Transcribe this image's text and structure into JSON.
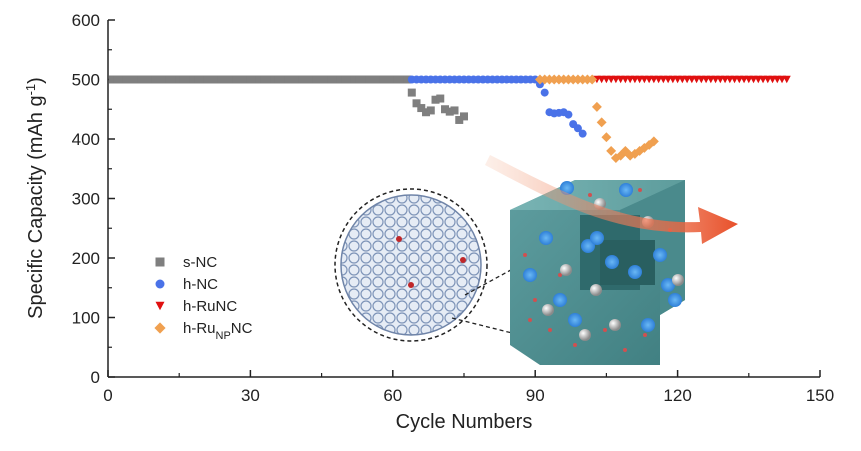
{
  "chart_data": {
    "type": "scatter",
    "xlabel": "Cycle Numbers",
    "ylabel": {
      "main": "Specific Capacity  (mAh g",
      "sup": "-1",
      "end": ")"
    },
    "xlim": [
      0,
      150
    ],
    "ylim": [
      0,
      600
    ],
    "xticks": [
      0,
      30,
      60,
      90,
      120,
      150
    ],
    "yticks": [
      0,
      100,
      200,
      300,
      400,
      500,
      600
    ],
    "grid": false,
    "legend_position": "center-left",
    "series": [
      {
        "name": "s-NC",
        "marker": "square",
        "color": "#7f7f7f",
        "x": [
          1,
          2,
          3,
          4,
          5,
          6,
          7,
          8,
          9,
          10,
          11,
          12,
          13,
          14,
          15,
          16,
          17,
          18,
          19,
          20,
          21,
          22,
          23,
          24,
          25,
          26,
          27,
          28,
          29,
          30,
          31,
          32,
          33,
          34,
          35,
          36,
          37,
          38,
          39,
          40,
          41,
          42,
          43,
          44,
          45,
          46,
          47,
          48,
          49,
          50,
          51,
          52,
          53,
          54,
          55,
          56,
          57,
          58,
          59,
          60,
          61,
          62,
          63,
          64,
          65,
          66,
          67,
          68,
          69,
          70,
          71,
          72,
          73,
          74,
          75
        ],
        "y": [
          500,
          500,
          500,
          500,
          500,
          500,
          500,
          500,
          500,
          500,
          500,
          500,
          500,
          500,
          500,
          500,
          500,
          500,
          500,
          500,
          500,
          500,
          500,
          500,
          500,
          500,
          500,
          500,
          500,
          500,
          500,
          500,
          500,
          500,
          500,
          500,
          500,
          500,
          500,
          500,
          500,
          500,
          500,
          500,
          500,
          500,
          500,
          500,
          500,
          500,
          500,
          500,
          500,
          500,
          500,
          500,
          500,
          500,
          500,
          500,
          500,
          500,
          500,
          478,
          460,
          452,
          445,
          448,
          466,
          468,
          450,
          446,
          448,
          432,
          438
        ]
      },
      {
        "name": "h-NC",
        "marker": "circle",
        "color": "#4a72e8",
        "x": [
          64,
          65,
          66,
          67,
          68,
          69,
          70,
          71,
          72,
          73,
          74,
          75,
          76,
          77,
          78,
          79,
          80,
          81,
          82,
          83,
          84,
          85,
          86,
          87,
          88,
          89,
          90,
          91,
          92,
          93,
          94,
          95,
          96,
          97,
          98,
          99,
          100
        ],
        "y": [
          500,
          500,
          500,
          500,
          500,
          500,
          500,
          500,
          500,
          500,
          500,
          500,
          500,
          500,
          500,
          500,
          500,
          500,
          500,
          500,
          500,
          500,
          500,
          500,
          500,
          500,
          500,
          492,
          478,
          445,
          443,
          444,
          445,
          441,
          425,
          418,
          409
        ]
      },
      {
        "name": "h-RuNC",
        "marker": "triangle-down",
        "color": "#e01010",
        "x": [
          103,
          104,
          105,
          106,
          107,
          108,
          109,
          110,
          111,
          112,
          113,
          114,
          115,
          116,
          117,
          118,
          119,
          120,
          121,
          122,
          123,
          124,
          125,
          126,
          127,
          128,
          129,
          130,
          131,
          132,
          133,
          134,
          135,
          136,
          137,
          138,
          139,
          140,
          141,
          142,
          143
        ],
        "y": [
          500,
          500,
          500,
          500,
          500,
          500,
          500,
          500,
          500,
          500,
          500,
          500,
          500,
          500,
          500,
          500,
          500,
          500,
          500,
          500,
          500,
          500,
          500,
          500,
          500,
          500,
          500,
          500,
          500,
          500,
          500,
          500,
          500,
          500,
          500,
          500,
          500,
          500,
          500,
          500,
          500
        ]
      },
      {
        "name": "h-Ru",
        "name_sub": "NP",
        "name_end": "NC",
        "marker": "diamond",
        "color": "#f0a050",
        "x": [
          91,
          92,
          93,
          94,
          95,
          96,
          97,
          98,
          99,
          100,
          101,
          102,
          103,
          104,
          105,
          106,
          107,
          108,
          109,
          110,
          111,
          112,
          113,
          114,
          115
        ],
        "y": [
          500,
          500,
          500,
          500,
          500,
          500,
          500,
          500,
          500,
          500,
          500,
          500,
          454,
          428,
          403,
          380,
          368,
          372,
          380,
          372,
          375,
          380,
          385,
          390,
          396
        ]
      }
    ]
  },
  "inset_illustration": {
    "sphere_icon": "hollow-carbon-sphere-icon",
    "cube_icon": "porous-carbon-cube-icon",
    "arrow_icon": "flow-arrow-icon"
  }
}
